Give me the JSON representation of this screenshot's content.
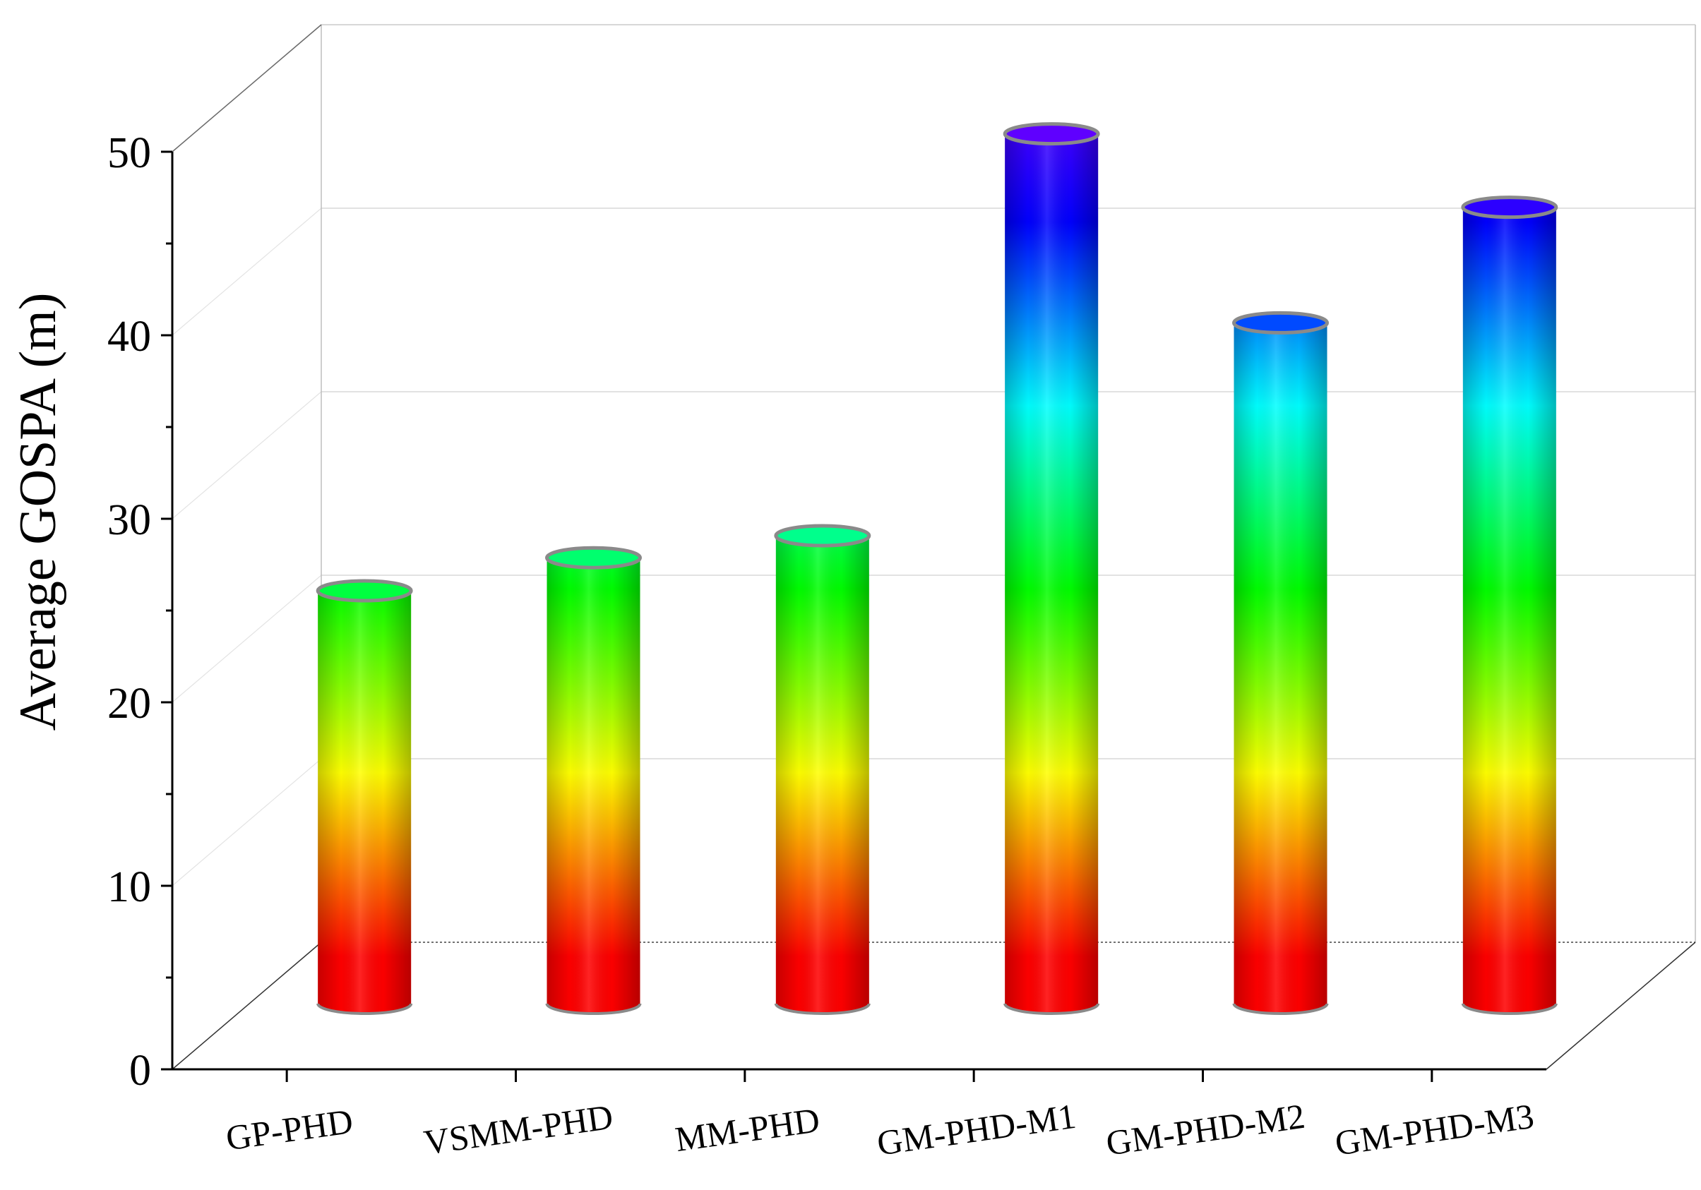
{
  "chart_data": {
    "type": "bar",
    "style": "3d-cylinder",
    "title": "",
    "xlabel": "",
    "ylabel": "Average GOSPA (m)",
    "categories": [
      "GP-PHD",
      "VSMM-PHD",
      "MM-PHD",
      "GM-PHD-M1",
      "GM-PHD-M2",
      "GM-PHD-M3"
    ],
    "values": [
      22.5,
      24.3,
      25.5,
      47.4,
      37.1,
      43.4
    ],
    "ylim": [
      0,
      50
    ],
    "yticks": [
      "0",
      "10",
      "20",
      "30",
      "40",
      "50"
    ],
    "grid": true,
    "colormap": [
      "#ff0000",
      "#ffff00",
      "#00ff00",
      "#00ffff",
      "#0000ff",
      "#8000ff"
    ],
    "colormap_max": 50
  }
}
